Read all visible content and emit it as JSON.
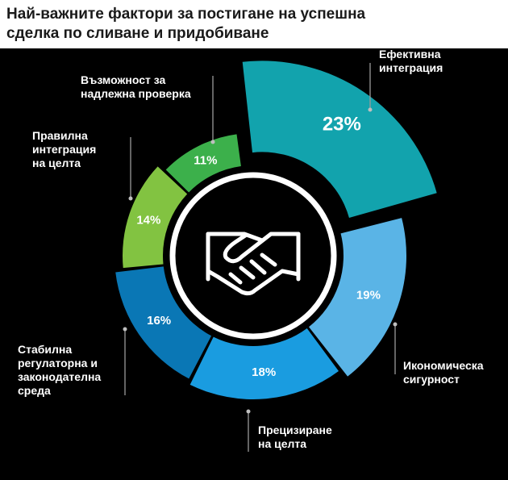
{
  "title": "Най-важните фактори за постигане на успешна сделка по сливане и придобиване",
  "chart_data": {
    "type": "pie",
    "subtype": "exploded-donut",
    "categories": [
      "Ефективна интеграция",
      "Икономическа сигурност",
      "Прецизиране на целта",
      "Стабилна регулаторна и законодателна среда",
      "Правилна интеграция на целта",
      "Възможност за надлежна проверка"
    ],
    "values": [
      23,
      19,
      18,
      16,
      14,
      11
    ],
    "value_labels": [
      "23%",
      "19%",
      "18%",
      "16%",
      "14%",
      "11%"
    ],
    "colors": [
      "#12a3ad",
      "#5ab4e6",
      "#1a9ce0",
      "#0a77b5",
      "#82c341",
      "#3cb04b"
    ],
    "center_icon": "handshake-icon",
    "label_lines": [
      [
        "Ефективна",
        "интеграция"
      ],
      [
        "Икономическа",
        "сигурност"
      ],
      [
        "Прецизиране",
        "на целта"
      ],
      [
        "Стабилна",
        "регулаторна и",
        "законодателна",
        "среда"
      ],
      [
        "Правилна",
        "интеграция",
        "на целта"
      ],
      [
        "Възможност за",
        "надлежна проверка"
      ]
    ]
  }
}
